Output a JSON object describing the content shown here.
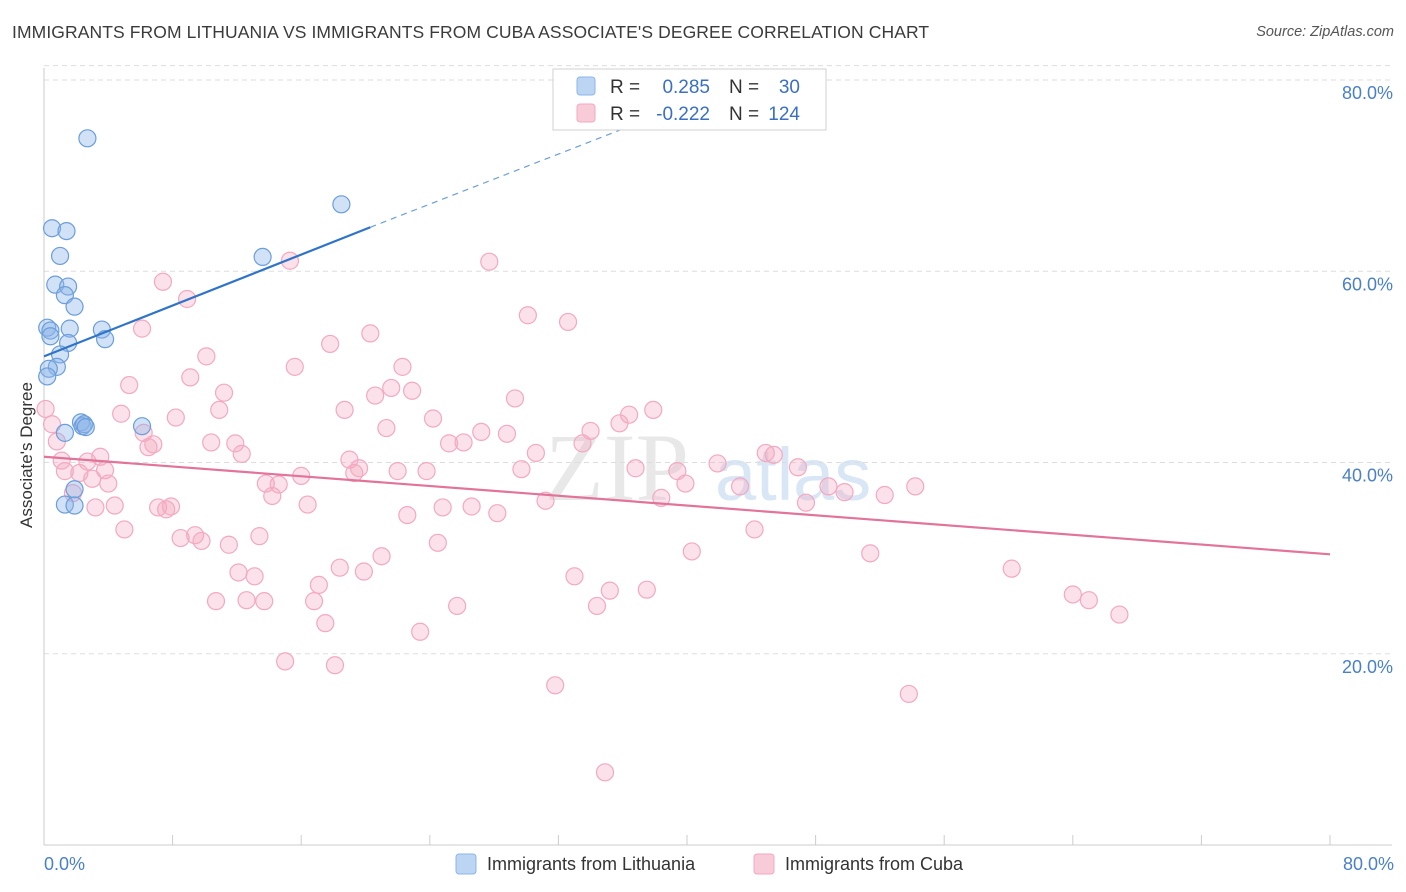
{
  "title": "IMMIGRANTS FROM LITHUANIA VS IMMIGRANTS FROM CUBA ASSOCIATE'S DEGREE CORRELATION CHART",
  "source": "Source: ZipAtlas.com",
  "colors": {
    "lithuania": "#8db5e8",
    "lithuania_line": "#2f74c8",
    "cuba": "#f3a9c1",
    "cuba_line": "#e2739a",
    "tick_text": "#4a7fc9",
    "grid": "#dddddd"
  },
  "legend": {
    "r_label": "R =",
    "n_label": "N =",
    "lithuania": {
      "r": "0.285",
      "n": "30"
    },
    "cuba": {
      "r": "-0.222",
      "n": "124"
    }
  },
  "watermark": {
    "zip": "ZIP",
    "atlas": "atlas"
  },
  "chart_data": {
    "type": "scatter",
    "title": "IMMIGRANTS FROM LITHUANIA VS IMMIGRANTS FROM CUBA ASSOCIATE'S DEGREE CORRELATION CHART",
    "xlabel": "",
    "ylabel": "Associate's Degree",
    "xlim": [
      0,
      80
    ],
    "ylim": [
      0,
      82
    ],
    "x_tick_labels": [
      "0.0%",
      "80.0%"
    ],
    "y_ticks": [
      20,
      40,
      60,
      80
    ],
    "y_tick_labels": [
      "20.0%",
      "40.0%",
      "60.0%",
      "80.0%"
    ],
    "grid": true,
    "series": [
      {
        "name": "Immigrants from Lithuania",
        "r": 0.285,
        "n": 30,
        "trend": {
          "x0": 0,
          "y0": 51.1,
          "x1": 20.3,
          "y1": 64.6,
          "dashed_to_x": 36.5,
          "dashed_to_y": 75.2
        },
        "points": [
          [
            2.7,
            73.9
          ],
          [
            0.5,
            64.5
          ],
          [
            1.4,
            64.2
          ],
          [
            1.0,
            61.6
          ],
          [
            13.6,
            61.5
          ],
          [
            18.5,
            67.0
          ],
          [
            0.7,
            58.6
          ],
          [
            1.5,
            58.4
          ],
          [
            1.3,
            57.5
          ],
          [
            1.9,
            56.3
          ],
          [
            0.2,
            54.1
          ],
          [
            0.4,
            53.8
          ],
          [
            1.6,
            54.0
          ],
          [
            3.6,
            53.9
          ],
          [
            0.4,
            53.2
          ],
          [
            3.8,
            52.9
          ],
          [
            1.5,
            52.5
          ],
          [
            1.0,
            51.3
          ],
          [
            0.8,
            50.0
          ],
          [
            0.3,
            49.8
          ],
          [
            0.2,
            49.0
          ],
          [
            2.3,
            44.2
          ],
          [
            2.4,
            43.8
          ],
          [
            2.5,
            44.0
          ],
          [
            6.1,
            43.8
          ],
          [
            1.3,
            43.1
          ],
          [
            1.9,
            37.2
          ],
          [
            1.3,
            35.6
          ],
          [
            1.9,
            35.5
          ],
          [
            2.6,
            43.7
          ]
        ]
      },
      {
        "name": "Immigrants from Cuba",
        "r": -0.222,
        "n": 124,
        "trend": {
          "x0": 0,
          "y0": 40.6,
          "x1": 80,
          "y1": 30.4
        },
        "points": [
          [
            0.1,
            45.6
          ],
          [
            0.5,
            44.0
          ],
          [
            0.8,
            42.2
          ],
          [
            1.1,
            40.2
          ],
          [
            1.3,
            39.1
          ],
          [
            1.8,
            36.8
          ],
          [
            2.2,
            38.9
          ],
          [
            2.7,
            40.1
          ],
          [
            3.0,
            38.3
          ],
          [
            3.2,
            35.3
          ],
          [
            3.5,
            40.6
          ],
          [
            3.8,
            39.2
          ],
          [
            4.0,
            37.8
          ],
          [
            4.4,
            35.5
          ],
          [
            4.8,
            45.1
          ],
          [
            5.0,
            33.0
          ],
          [
            5.3,
            48.1
          ],
          [
            6.1,
            54.0
          ],
          [
            6.2,
            43.1
          ],
          [
            6.5,
            41.6
          ],
          [
            6.8,
            41.9
          ],
          [
            7.1,
            35.3
          ],
          [
            7.4,
            58.9
          ],
          [
            7.6,
            35.1
          ],
          [
            7.9,
            35.4
          ],
          [
            8.2,
            44.7
          ],
          [
            8.5,
            32.1
          ],
          [
            8.9,
            57.1
          ],
          [
            9.1,
            48.9
          ],
          [
            9.4,
            32.4
          ],
          [
            9.8,
            31.8
          ],
          [
            10.1,
            51.1
          ],
          [
            10.4,
            42.1
          ],
          [
            10.7,
            25.5
          ],
          [
            10.9,
            45.5
          ],
          [
            11.2,
            47.3
          ],
          [
            11.5,
            31.4
          ],
          [
            11.9,
            42.0
          ],
          [
            12.1,
            28.5
          ],
          [
            12.3,
            40.9
          ],
          [
            12.6,
            25.6
          ],
          [
            13.1,
            28.1
          ],
          [
            13.4,
            32.3
          ],
          [
            13.7,
            25.5
          ],
          [
            13.8,
            37.8
          ],
          [
            14.2,
            36.5
          ],
          [
            14.6,
            37.7
          ],
          [
            15.0,
            19.2
          ],
          [
            15.3,
            61.1
          ],
          [
            15.6,
            50.0
          ],
          [
            16.0,
            38.6
          ],
          [
            16.4,
            35.6
          ],
          [
            16.8,
            25.5
          ],
          [
            17.1,
            27.2
          ],
          [
            17.5,
            23.2
          ],
          [
            17.8,
            52.4
          ],
          [
            18.1,
            18.8
          ],
          [
            18.4,
            29.0
          ],
          [
            18.7,
            45.5
          ],
          [
            19.0,
            40.3
          ],
          [
            19.3,
            38.9
          ],
          [
            19.6,
            39.4
          ],
          [
            19.9,
            28.6
          ],
          [
            20.3,
            53.5
          ],
          [
            20.6,
            47.0
          ],
          [
            21.0,
            30.2
          ],
          [
            21.3,
            43.6
          ],
          [
            21.6,
            47.8
          ],
          [
            22.0,
            39.1
          ],
          [
            22.3,
            50.0
          ],
          [
            22.6,
            34.5
          ],
          [
            22.9,
            47.5
          ],
          [
            23.4,
            22.3
          ],
          [
            23.8,
            39.1
          ],
          [
            24.2,
            44.6
          ],
          [
            24.5,
            31.6
          ],
          [
            24.8,
            35.3
          ],
          [
            25.2,
            42.0
          ],
          [
            25.7,
            25.0
          ],
          [
            26.1,
            42.1
          ],
          [
            26.6,
            35.4
          ],
          [
            27.2,
            43.2
          ],
          [
            27.7,
            61.0
          ],
          [
            28.2,
            34.7
          ],
          [
            28.8,
            43.0
          ],
          [
            29.3,
            46.7
          ],
          [
            29.7,
            39.3
          ],
          [
            30.1,
            55.4
          ],
          [
            30.6,
            41.0
          ],
          [
            31.2,
            36.0
          ],
          [
            31.8,
            16.7
          ],
          [
            32.6,
            54.7
          ],
          [
            33.0,
            28.1
          ],
          [
            33.5,
            42.0
          ],
          [
            34.0,
            43.3
          ],
          [
            34.4,
            25.0
          ],
          [
            34.9,
            7.6
          ],
          [
            35.2,
            26.6
          ],
          [
            35.8,
            44.1
          ],
          [
            36.4,
            45.0
          ],
          [
            36.8,
            39.4
          ],
          [
            37.5,
            26.7
          ],
          [
            37.9,
            45.5
          ],
          [
            38.4,
            36.3
          ],
          [
            39.4,
            39.1
          ],
          [
            39.9,
            37.8
          ],
          [
            40.3,
            30.7
          ],
          [
            41.9,
            39.9
          ],
          [
            43.3,
            37.5
          ],
          [
            44.2,
            33.0
          ],
          [
            44.9,
            41.0
          ],
          [
            45.4,
            40.8
          ],
          [
            46.9,
            39.5
          ],
          [
            47.4,
            35.8
          ],
          [
            48.8,
            37.5
          ],
          [
            49.8,
            36.9
          ],
          [
            51.4,
            30.5
          ],
          [
            52.3,
            36.6
          ],
          [
            53.8,
            15.8
          ],
          [
            54.2,
            37.5
          ],
          [
            60.2,
            28.9
          ],
          [
            64.0,
            26.2
          ],
          [
            65.0,
            25.6
          ],
          [
            66.9,
            24.1
          ]
        ]
      }
    ]
  }
}
